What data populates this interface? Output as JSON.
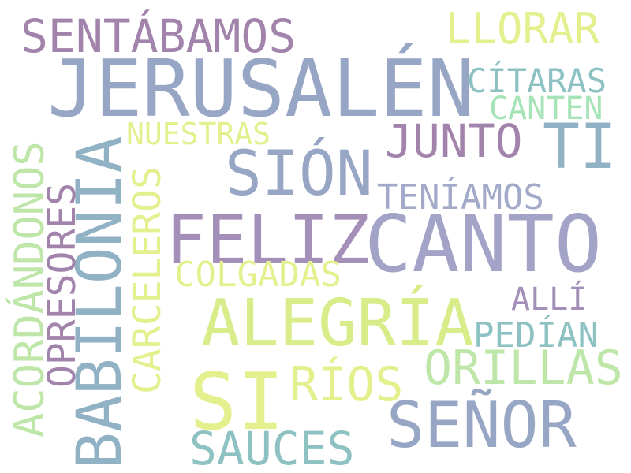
{
  "words": {
    "jerusalen": {
      "text": "JERUSALÉN",
      "color": "#97a6c4"
    },
    "sentabamos": {
      "text": "SENTÁBAMOS",
      "color": "#a283ab"
    },
    "llorar": {
      "text": "LLORAR",
      "color": "#e3f08d"
    },
    "citaras": {
      "text": "CÍTARAS",
      "color": "#8ec2c2"
    },
    "canten": {
      "text": "CANTEN",
      "color": "#a6e4b7"
    },
    "nuestras": {
      "text": "NUESTRAS",
      "color": "#e3f08d"
    },
    "junto": {
      "text": "JUNTO",
      "color": "#a283ab"
    },
    "ti": {
      "text": "TI",
      "color": "#91b1c4"
    },
    "sion": {
      "text": "SIÓN",
      "color": "#97a6c4"
    },
    "teniamos": {
      "text": "TENÍAMOS",
      "color": "#a3a9c8"
    },
    "feliz": {
      "text": "FELIZ",
      "color": "#a38fb8"
    },
    "canto": {
      "text": "CANTO",
      "color": "#a3a3c8"
    },
    "colgadas": {
      "text": "COLGADAS",
      "color": "#e3f08d"
    },
    "alli": {
      "text": "ALLÍ",
      "color": "#a38fb8"
    },
    "alegria": {
      "text": "ALEGRÍA",
      "color": "#d8ec8a"
    },
    "pedian": {
      "text": "PEDÍAN",
      "color": "#8ec2c2"
    },
    "orillas": {
      "text": "ORILLAS",
      "color": "#bde6a8"
    },
    "rios": {
      "text": "RÍOS",
      "color": "#e3f08d"
    },
    "si": {
      "text": "SI",
      "color": "#e3f08d"
    },
    "senor": {
      "text": "SEÑOR",
      "color": "#97a6c4"
    },
    "sauces": {
      "text": "SAUCES",
      "color": "#8ec2c2"
    },
    "babilonia": {
      "text": "BABILONIA",
      "color": "#91b1c4"
    },
    "acordandonos": {
      "text": "ACORDÁNDONOS",
      "color": "#bde6a8"
    },
    "opresores": {
      "text": "OPRESORES",
      "color": "#a283ab"
    },
    "carceleros": {
      "text": "CARCELEROS",
      "color": "#e3f08d"
    }
  }
}
